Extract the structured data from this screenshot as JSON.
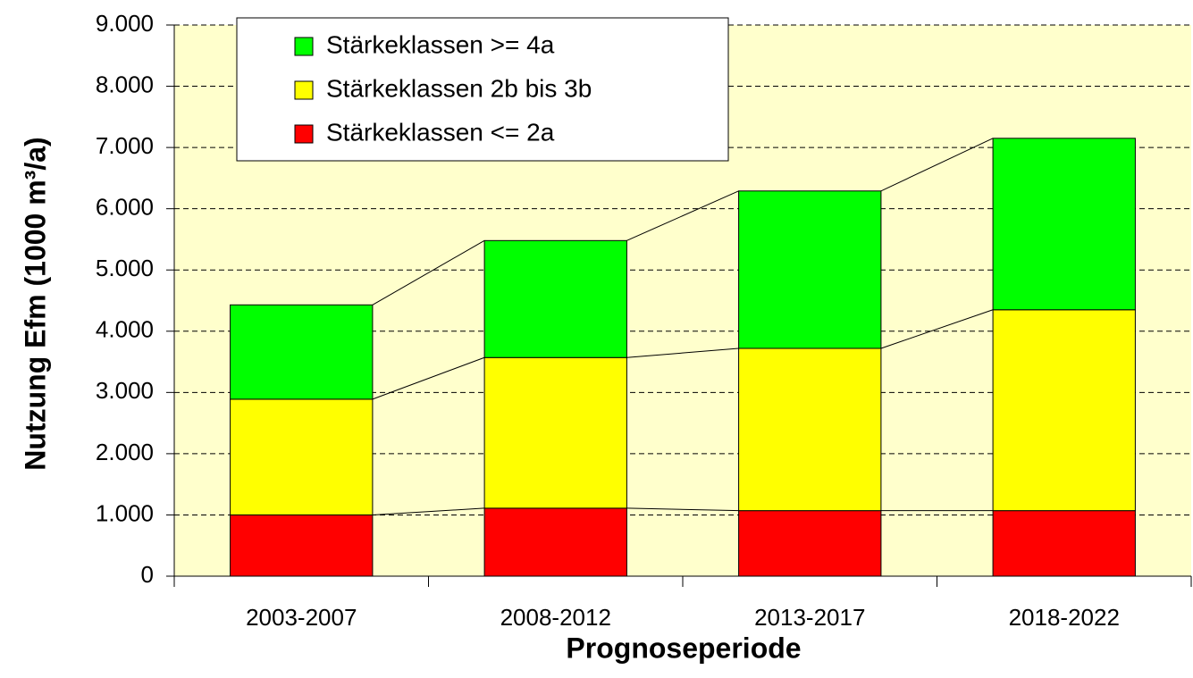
{
  "chart_data": {
    "type": "stacked_bar",
    "x_label": "Prognoseperiode",
    "y_label": "Nutzung Efm (1000 m³/a)",
    "categories": [
      "2003-2007",
      "2008-2012",
      "2013-2017",
      "2018-2022"
    ],
    "series": [
      {
        "name": "Stärkeklassen >= 4a",
        "color": "#00ff00",
        "values": [
          1540,
          1910,
          2570,
          2800
        ]
      },
      {
        "name": "Stärkeklassen 2b bis 3b",
        "color": "#ffff00",
        "values": [
          1890,
          2460,
          2650,
          3280
        ]
      },
      {
        "name": "Stärkeklassen <= 2a",
        "color": "#ff0000",
        "values": [
          1000,
          1110,
          1070,
          1070
        ]
      }
    ],
    "ylim": [
      0,
      9000
    ],
    "yticks": [
      0,
      {
        "value": 1000,
        "label": "1.000"
      },
      {
        "value": 2000,
        "label": "2.000"
      },
      {
        "value": 3000,
        "label": "3.000"
      },
      {
        "value": 4000,
        "label": "4.000"
      },
      {
        "value": 5000,
        "label": "5.000"
      },
      {
        "value": 6000,
        "label": "6.000"
      },
      {
        "value": 7000,
        "label": "7.000"
      },
      {
        "value": 8000,
        "label": "8.000"
      },
      {
        "value": 9000,
        "label": "9.000"
      }
    ],
    "grid": true,
    "legend": "top-left",
    "background": "#ffffcc"
  }
}
